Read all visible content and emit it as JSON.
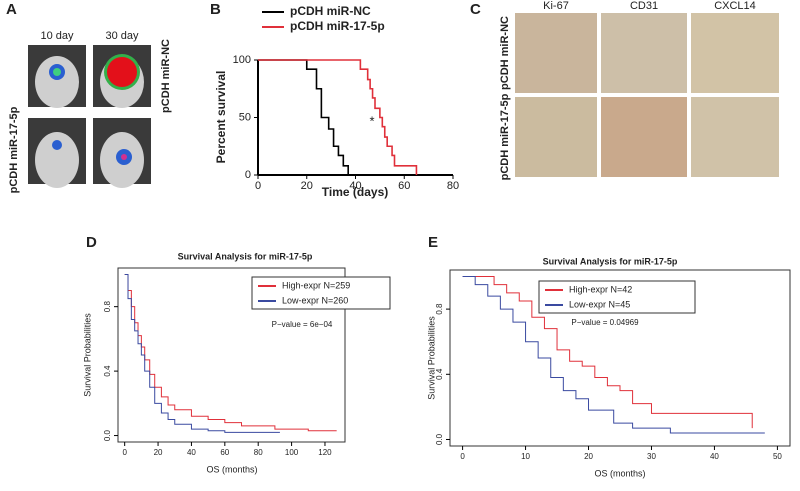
{
  "panels": {
    "A": {
      "label": "A",
      "cols": [
        "10 day",
        "30 day"
      ],
      "rows": [
        "pCDH miR-NC",
        "pCDH miR-17-5p"
      ]
    },
    "B": {
      "label": "B"
    },
    "C": {
      "label": "C",
      "cols": [
        "Ki-67",
        "CD31",
        "CXCL14"
      ],
      "rows": [
        "pCDH miR-NC",
        "pCDH miR-17-5p"
      ]
    },
    "D": {
      "label": "D"
    },
    "E": {
      "label": "E"
    }
  },
  "chart_data": [
    {
      "type": "line",
      "step": true,
      "xlabel": "Time (days)",
      "ylabel": "Percent survival",
      "annotation": "*",
      "xlim": [
        0,
        80
      ],
      "xticks": [
        0,
        20,
        40,
        60,
        80
      ],
      "ylim": [
        0,
        100
      ],
      "yticks": [
        0,
        50,
        100
      ],
      "series": [
        {
          "name": "pCDH miR-NC",
          "color": "#000000",
          "x": [
            0,
            20,
            24,
            26,
            29,
            31,
            33,
            35,
            37
          ],
          "values": [
            100,
            92,
            75,
            50,
            40,
            25,
            17,
            8,
            0
          ]
        },
        {
          "name": "pCDH miR-17-5p",
          "color": "#e0303a",
          "x": [
            0,
            42,
            45,
            46,
            47,
            48,
            50,
            51,
            52,
            53,
            55,
            56,
            65
          ],
          "values": [
            100,
            92,
            83,
            75,
            67,
            58,
            50,
            42,
            33,
            25,
            17,
            8,
            0
          ]
        }
      ]
    },
    {
      "type": "line",
      "step": true,
      "title": "Survival Analysis for miR-17-5p",
      "xlabel": "OS (months)",
      "ylabel": "Survival Probabilities",
      "annotation": "P−value = 6e−04",
      "xlim": [
        -4,
        132
      ],
      "xticks": [
        0,
        20,
        40,
        60,
        80,
        100,
        120
      ],
      "ylim": [
        -0.04,
        1.04
      ],
      "yticks": [
        {
          "value": 0,
          "label": "0.0"
        },
        0.4,
        0.8
      ],
      "series": [
        {
          "name": "High-expr N=259",
          "color": "#e0303a",
          "x": [
            0,
            2,
            4,
            6,
            8,
            10,
            12,
            15,
            18,
            22,
            26,
            30,
            40,
            50,
            60,
            70,
            90,
            110,
            127
          ],
          "values": [
            1,
            0.9,
            0.8,
            0.7,
            0.62,
            0.55,
            0.47,
            0.38,
            0.3,
            0.24,
            0.19,
            0.16,
            0.12,
            0.1,
            0.08,
            0.06,
            0.04,
            0.03,
            0.03
          ]
        },
        {
          "name": "Low-expr N=260",
          "color": "#3a4aa0",
          "x": [
            0,
            2,
            4,
            6,
            8,
            10,
            12,
            15,
            18,
            22,
            26,
            30,
            40,
            50,
            60,
            93
          ],
          "values": [
            1,
            0.85,
            0.72,
            0.65,
            0.57,
            0.5,
            0.4,
            0.3,
            0.2,
            0.14,
            0.1,
            0.07,
            0.04,
            0.03,
            0.02,
            0.02
          ]
        }
      ]
    },
    {
      "type": "line",
      "step": true,
      "title": "Survival Analysis for miR-17-5p",
      "xlabel": "OS (months)",
      "ylabel": "Survival Probabilities",
      "annotation": "P−value = 0.04969",
      "xlim": [
        -2,
        52
      ],
      "xticks": [
        0,
        10,
        20,
        30,
        40,
        50
      ],
      "ylim": [
        -0.04,
        1.04
      ],
      "yticks": [
        {
          "value": 0,
          "label": "0.0"
        },
        0.4,
        0.8
      ],
      "series": [
        {
          "name": "High-expr N=42",
          "color": "#e0303a",
          "x": [
            0,
            5,
            7,
            9,
            11,
            13,
            15,
            17,
            19,
            21,
            23,
            25,
            27,
            30,
            34,
            46
          ],
          "values": [
            1,
            0.95,
            0.9,
            0.85,
            0.75,
            0.68,
            0.55,
            0.48,
            0.45,
            0.38,
            0.33,
            0.3,
            0.22,
            0.16,
            0.16,
            0.07
          ]
        },
        {
          "name": "Low-expr N=45",
          "color": "#3a4aa0",
          "x": [
            0,
            2,
            4,
            6,
            8,
            10,
            12,
            14,
            16,
            18,
            20,
            24,
            27,
            33,
            48
          ],
          "values": [
            1,
            0.95,
            0.88,
            0.8,
            0.72,
            0.6,
            0.5,
            0.38,
            0.3,
            0.25,
            0.18,
            0.1,
            0.07,
            0.04,
            0.04
          ]
        }
      ]
    }
  ]
}
